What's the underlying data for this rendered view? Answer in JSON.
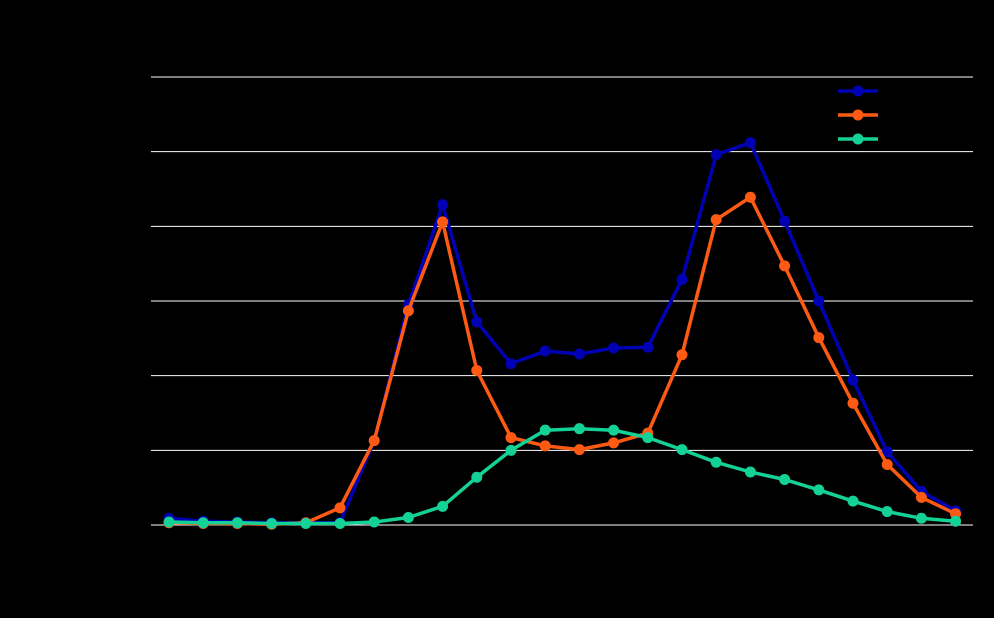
{
  "chart_data": {
    "type": "line",
    "x": [
      0,
      1,
      2,
      3,
      4,
      5,
      6,
      7,
      8,
      9,
      10,
      11,
      12,
      13,
      14,
      15,
      16,
      17,
      18,
      19,
      20,
      21,
      22,
      23
    ],
    "ylim": [
      0,
      6
    ],
    "yticks": [
      0,
      1,
      2,
      3,
      4,
      5,
      6
    ],
    "grid": true,
    "legend_position": "top-right",
    "background": "#000000",
    "grid_color": "#ffffff",
    "series": [
      {
        "color": "#0000b4",
        "values": [
          0.09,
          0.05,
          0.04,
          0.03,
          0.03,
          0.03,
          1.13,
          2.95,
          4.29,
          2.72,
          2.16,
          2.33,
          2.29,
          2.37,
          2.38,
          3.29,
          4.96,
          5.12,
          4.07,
          3.0,
          1.94,
          0.98,
          0.45,
          0.19
        ]
      },
      {
        "color": "#ff5a14",
        "values": [
          0.03,
          0.02,
          0.02,
          0.01,
          0.03,
          0.23,
          1.13,
          2.87,
          4.06,
          2.07,
          1.17,
          1.06,
          1.01,
          1.1,
          1.23,
          2.28,
          4.09,
          4.39,
          3.47,
          2.51,
          1.63,
          0.81,
          0.37,
          0.15
        ]
      },
      {
        "color": "#14d296",
        "values": [
          0.04,
          0.03,
          0.03,
          0.02,
          0.02,
          0.02,
          0.04,
          0.1,
          0.25,
          0.64,
          1.0,
          1.27,
          1.29,
          1.27,
          1.17,
          1.01,
          0.84,
          0.71,
          0.61,
          0.47,
          0.32,
          0.18,
          0.09,
          0.05
        ]
      }
    ]
  }
}
